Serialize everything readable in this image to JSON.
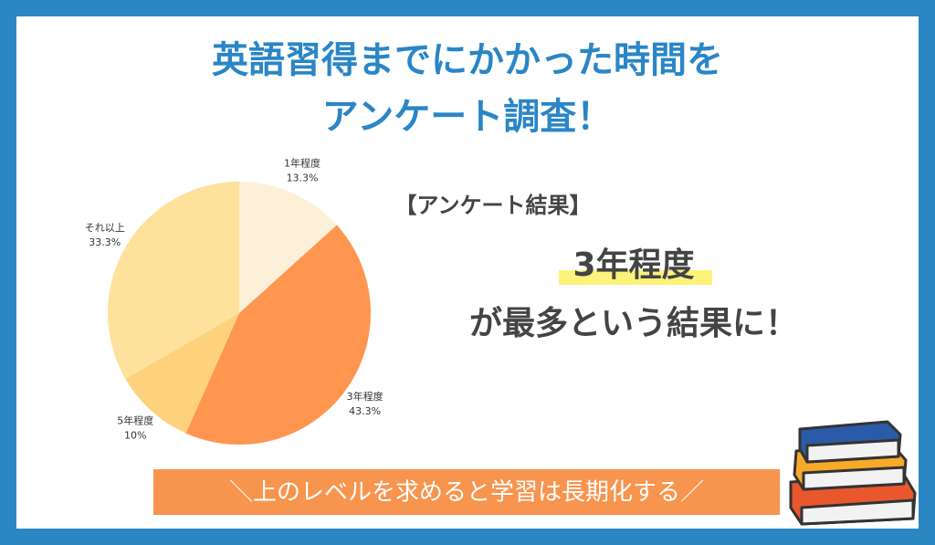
{
  "header": {
    "title_lines": [
      "英語習得までにかかった時間を",
      "アンケート調査！"
    ]
  },
  "chart_data": {
    "type": "pie",
    "categories": [
      "1年程度",
      "3年程度",
      "5年程度",
      "それ以上"
    ],
    "values": [
      13.3,
      43.3,
      10,
      33.3
    ],
    "value_labels": [
      "13.3%",
      "43.3%",
      "10%",
      "33.3%"
    ],
    "colors": [
      "#fdf0d9",
      "#fe9650",
      "#fed27c",
      "#fee29c"
    ]
  },
  "result": {
    "heading": "【アンケート結果】",
    "highlight": "3年程度",
    "text": "が最多という結果に！"
  },
  "banner": "＼上のレベルを求めると学習は長期化する／"
}
